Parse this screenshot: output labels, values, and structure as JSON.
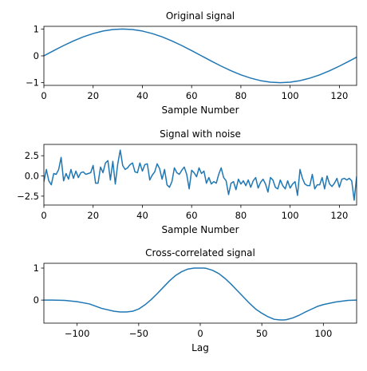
{
  "chart_data": [
    {
      "type": "line",
      "title": "Original signal",
      "xlabel": "Sample Number",
      "ylabel": "",
      "xlim": [
        0,
        127
      ],
      "ylim": [
        -1.1,
        1.1
      ],
      "xticks": [
        0,
        20,
        40,
        60,
        80,
        100,
        120
      ],
      "yticks": [
        -1,
        0,
        1
      ],
      "xtick_labels": [
        "0",
        "20",
        "40",
        "60",
        "80",
        "100",
        "120"
      ],
      "ytick_labels": [
        "−1",
        "0",
        "1"
      ],
      "grid": false,
      "series": [
        {
          "color": "#1f77b4",
          "x": [
            0,
            4,
            8,
            12,
            16,
            20,
            24,
            28,
            32,
            36,
            40,
            44,
            48,
            52,
            56,
            60,
            64,
            68,
            72,
            76,
            80,
            84,
            88,
            92,
            96,
            100,
            104,
            108,
            112,
            116,
            120,
            124,
            127
          ],
          "y": [
            0,
            0.195,
            0.383,
            0.556,
            0.707,
            0.831,
            0.924,
            0.981,
            1,
            0.981,
            0.924,
            0.831,
            0.707,
            0.556,
            0.383,
            0.195,
            0,
            -0.195,
            -0.383,
            -0.556,
            -0.707,
            -0.831,
            -0.924,
            -0.981,
            -1,
            -0.981,
            -0.924,
            -0.831,
            -0.707,
            -0.556,
            -0.383,
            -0.195,
            -0.049
          ]
        }
      ]
    },
    {
      "type": "line",
      "title": "Signal with noise",
      "xlabel": "Sample Number",
      "ylabel": "",
      "xlim": [
        0,
        127
      ],
      "ylim": [
        -3.6,
        3.9
      ],
      "xticks": [
        0,
        20,
        40,
        60,
        80,
        100,
        120
      ],
      "yticks": [
        -2.5,
        0,
        2.5
      ],
      "xtick_labels": [
        "0",
        "20",
        "40",
        "60",
        "80",
        "100",
        "120"
      ],
      "ytick_labels": [
        "−2.5",
        "0.0",
        "2.5"
      ],
      "grid": false,
      "series": [
        {
          "color": "#1f77b4",
          "x": [
            0,
            1,
            2,
            3,
            4,
            5,
            6,
            7,
            8,
            9,
            10,
            11,
            12,
            13,
            14,
            15,
            16,
            17,
            18,
            19,
            20,
            21,
            22,
            23,
            24,
            25,
            26,
            27,
            28,
            29,
            30,
            31,
            32,
            33,
            34,
            35,
            36,
            37,
            38,
            39,
            40,
            41,
            42,
            43,
            44,
            45,
            46,
            47,
            48,
            49,
            50,
            51,
            52,
            53,
            54,
            55,
            56,
            57,
            58,
            59,
            60,
            61,
            62,
            63,
            64,
            65,
            66,
            67,
            68,
            69,
            70,
            71,
            72,
            73,
            74,
            75,
            76,
            77,
            78,
            79,
            80,
            81,
            82,
            83,
            84,
            85,
            86,
            87,
            88,
            89,
            90,
            91,
            92,
            93,
            94,
            95,
            96,
            97,
            98,
            99,
            100,
            101,
            102,
            103,
            104,
            105,
            106,
            107,
            108,
            109,
            110,
            111,
            112,
            113,
            114,
            115,
            116,
            117,
            118,
            119,
            120,
            121,
            122,
            123,
            124,
            125,
            126,
            127
          ],
          "y": [
            -0.7,
            0.8,
            -0.6,
            -1.1,
            0.3,
            0.2,
            0.8,
            2.3,
            -0.6,
            0.3,
            -0.4,
            0.8,
            -0.3,
            0.6,
            -0.2,
            0.4,
            0.5,
            0.2,
            0.3,
            0.4,
            1.3,
            -0.9,
            -0.9,
            1.1,
            0.4,
            1.6,
            1.9,
            -0.5,
            1.8,
            -1.0,
            1.5,
            3.2,
            1.3,
            0.8,
            1.0,
            1.4,
            1.6,
            0.5,
            0.4,
            1.6,
            0.6,
            1.4,
            1.5,
            -0.5,
            0.1,
            0.5,
            1.5,
            0.9,
            -0.4,
            0.8,
            -1.1,
            -1.4,
            -0.7,
            1.0,
            0.4,
            0.2,
            0.7,
            1.1,
            0.2,
            -1.6,
            0.7,
            0.4,
            -0.1,
            1.0,
            0.3,
            0.6,
            -0.9,
            -0.2,
            -1.0,
            -0.7,
            -0.9,
            0.2,
            1.0,
            -0.2,
            -0.6,
            -2.3,
            -0.9,
            -0.7,
            -1.7,
            -0.4,
            -1.0,
            -0.6,
            -1.2,
            -0.5,
            -1.4,
            -0.6,
            -0.2,
            -1.5,
            -0.8,
            -0.4,
            -1.0,
            -2.0,
            -0.2,
            -0.5,
            -1.4,
            -1.6,
            -0.5,
            -1.2,
            -1.6,
            -0.6,
            -1.5,
            -1.0,
            -0.7,
            -2.4,
            0.8,
            -0.3,
            -1.0,
            -1.2,
            -1.2,
            0.2,
            -1.6,
            -1.1,
            -1.1,
            -0.2,
            -1.6,
            0.0,
            -1.0,
            -1.3,
            -0.9,
            -0.3,
            -1.4,
            -0.4,
            -0.3,
            -0.5,
            -0.3,
            -0.6,
            -3.0,
            -0.1
          ]
        }
      ]
    },
    {
      "type": "line",
      "title": "Cross-correlated signal",
      "xlabel": "Lag",
      "ylabel": "",
      "xlim": [
        -127,
        127
      ],
      "ylim": [
        -0.72,
        1.15
      ],
      "xticks": [
        -100,
        -50,
        0,
        50,
        100
      ],
      "yticks": [
        0,
        1
      ],
      "xtick_labels": [
        "−100",
        "−50",
        "0",
        "50",
        "100"
      ],
      "ytick_labels": [
        "0",
        "1"
      ],
      "grid": false,
      "series": [
        {
          "color": "#1f77b4",
          "x": [
            -127,
            -120,
            -110,
            -100,
            -90,
            -80,
            -70,
            -65,
            -60,
            -55,
            -50,
            -45,
            -40,
            -35,
            -30,
            -25,
            -20,
            -15,
            -10,
            -5,
            0,
            3,
            5,
            10,
            15,
            20,
            25,
            30,
            35,
            40,
            45,
            50,
            55,
            60,
            65,
            68,
            70,
            75,
            80,
            85,
            90,
            95,
            100,
            110,
            120,
            127
          ],
          "y": [
            0.0,
            0.0,
            -0.01,
            -0.05,
            -0.12,
            -0.26,
            -0.35,
            -0.37,
            -0.37,
            -0.35,
            -0.28,
            -0.15,
            0.01,
            0.2,
            0.4,
            0.6,
            0.77,
            0.89,
            0.97,
            1.0,
            1.0,
            1.0,
            0.99,
            0.93,
            0.83,
            0.68,
            0.5,
            0.3,
            0.1,
            -0.1,
            -0.28,
            -0.41,
            -0.52,
            -0.6,
            -0.62,
            -0.62,
            -0.61,
            -0.56,
            -0.48,
            -0.38,
            -0.29,
            -0.2,
            -0.14,
            -0.06,
            -0.01,
            0.0
          ]
        }
      ]
    }
  ]
}
